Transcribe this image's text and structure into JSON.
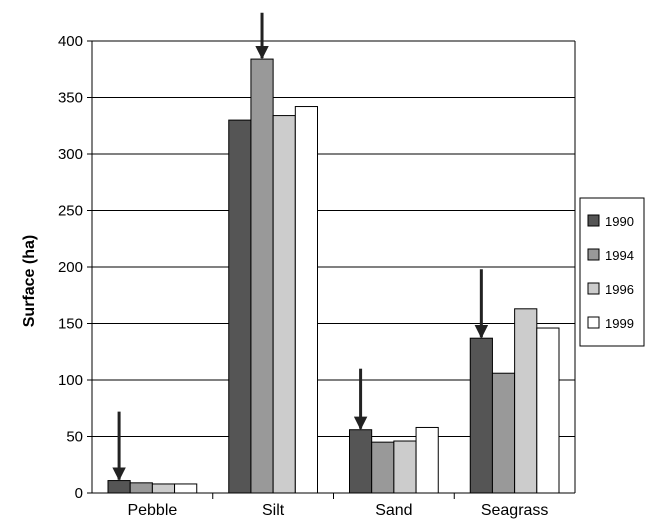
{
  "chart_data": {
    "type": "bar",
    "title": "",
    "xlabel": "",
    "ylabel": "Surface (ha)",
    "ylim": [
      0,
      400
    ],
    "yticks": [
      0,
      50,
      100,
      150,
      200,
      250,
      300,
      350,
      400
    ],
    "grid": "horizontal",
    "legend_position": "right",
    "categories": [
      "Pebble",
      "Silt",
      "Sand",
      "Seagrass"
    ],
    "series": [
      {
        "name": "1990",
        "color": "#555555",
        "values": [
          11,
          330,
          56,
          137
        ]
      },
      {
        "name": "1994",
        "color": "#999999",
        "values": [
          9,
          384,
          45,
          106
        ]
      },
      {
        "name": "1996",
        "color": "#cccccc",
        "values": [
          8,
          334,
          46,
          163
        ]
      },
      {
        "name": "1999",
        "color": "#ffffff",
        "values": [
          8,
          342,
          58,
          146
        ]
      }
    ],
    "annotations": [
      {
        "type": "arrow",
        "category": "Pebble",
        "series": "1990",
        "from_value": 72,
        "to_value": 11
      },
      {
        "type": "arrow",
        "category": "Silt",
        "series": "1994",
        "from_value": 425,
        "to_value": 384
      },
      {
        "type": "arrow",
        "category": "Sand",
        "series": "1990",
        "from_value": 110,
        "to_value": 56
      },
      {
        "type": "arrow",
        "category": "Seagrass",
        "series": "1990",
        "from_value": 198,
        "to_value": 137
      }
    ]
  }
}
